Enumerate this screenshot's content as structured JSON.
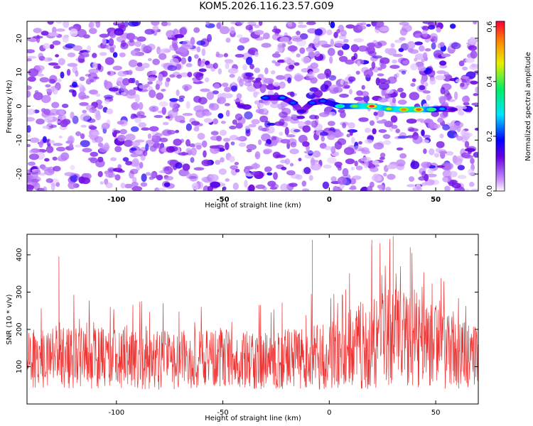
{
  "title": "KOM5.2026.116.23.57.G09",
  "chart_data": [
    {
      "type": "heatmap",
      "xlabel": "Height of straight line (km)",
      "ylabel": "Frequency (Hz)",
      "xlim": [
        -142,
        70
      ],
      "ylim": [
        -25,
        25
      ],
      "xticks": [
        -100,
        -50,
        0,
        50
      ],
      "yticks": [
        -20,
        -10,
        0,
        10,
        20
      ],
      "colorbar": {
        "label": "Normalized spectral amplitude",
        "range": [
          0.0,
          0.62
        ],
        "ticks": [
          0.0,
          0.2,
          0.4,
          0.6
        ],
        "tick_labels": [
          "0.0",
          "0.2",
          "0.4",
          "0.6"
        ]
      },
      "signal_track": [
        {
          "x": -30,
          "y": 2.5,
          "amp": 0.22
        },
        {
          "x": -22,
          "y": 2.5,
          "amp": 0.24
        },
        {
          "x": -17,
          "y": 1.0,
          "amp": 0.22
        },
        {
          "x": -13,
          "y": -1.5,
          "amp": 0.16
        },
        {
          "x": -8,
          "y": 1.0,
          "amp": 0.22
        },
        {
          "x": -3,
          "y": 1.5,
          "amp": 0.22
        },
        {
          "x": 5,
          "y": 0.0,
          "amp": 0.35
        },
        {
          "x": 12,
          "y": 0.0,
          "amp": 0.42
        },
        {
          "x": 20,
          "y": 0.0,
          "amp": 0.6
        },
        {
          "x": 28,
          "y": -0.8,
          "amp": 0.45
        },
        {
          "x": 35,
          "y": -1.0,
          "amp": 0.55
        },
        {
          "x": 42,
          "y": -1.0,
          "amp": 0.58
        },
        {
          "x": 48,
          "y": -1.0,
          "amp": 0.4
        },
        {
          "x": 53,
          "y": -0.8,
          "amp": 0.25
        },
        {
          "x": 58,
          "y": -1.0,
          "amp": 0.15
        }
      ],
      "noise_level": 0.06
    },
    {
      "type": "line",
      "xlabel": "Height of straight line (km)",
      "ylabel": "SNR (10 * v/v)",
      "xlim": [
        -142,
        70
      ],
      "ylim": [
        0,
        455
      ],
      "xticks": [
        -100,
        -50,
        0,
        50
      ],
      "yticks": [
        100,
        200,
        300,
        400
      ],
      "series": [
        {
          "name": "SNR",
          "color": "#ee3333",
          "envelope_x": [
            -142,
            -120,
            -100,
            -80,
            -60,
            -40,
            -20,
            0,
            10,
            20,
            30,
            40,
            50,
            60,
            70
          ],
          "envelope_mean": [
            120,
            125,
            120,
            118,
            122,
            118,
            120,
            128,
            145,
            170,
            175,
            165,
            150,
            135,
            125
          ],
          "envelope_spread": [
            80,
            85,
            80,
            80,
            82,
            78,
            80,
            90,
            110,
            130,
            135,
            125,
            110,
            95,
            85
          ],
          "notable_peaks": [
            {
              "x": -127,
              "y": 395
            },
            {
              "x": -8,
              "y": 440
            },
            {
              "x": 20,
              "y": 440
            },
            {
              "x": 30,
              "y": 450
            },
            {
              "x": 38,
              "y": 420
            }
          ]
        }
      ]
    }
  ]
}
